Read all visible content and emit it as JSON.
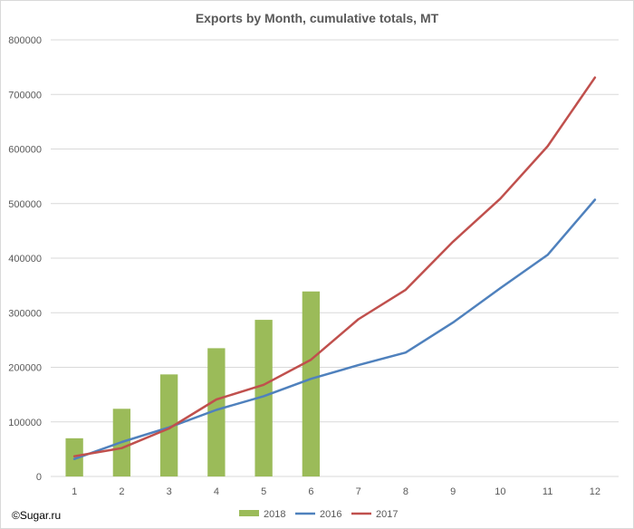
{
  "watermark": "©Sugar.ru",
  "chart_data": {
    "type": "bar+line",
    "title": "Exports by Month, cumulative totals, MT",
    "xlabel": "",
    "ylabel": "",
    "categories": [
      "1",
      "2",
      "3",
      "4",
      "5",
      "6",
      "7",
      "8",
      "9",
      "10",
      "11",
      "12"
    ],
    "ylim": [
      0,
      800000
    ],
    "yticks": [
      0,
      100000,
      200000,
      300000,
      400000,
      500000,
      600000,
      700000,
      800000
    ],
    "grid": true,
    "legend_position": "bottom",
    "series": [
      {
        "name": "2018",
        "type": "bar",
        "color": "#9bbb59",
        "values": [
          70000,
          124000,
          187000,
          235000,
          287000,
          339000,
          null,
          null,
          null,
          null,
          null,
          null
        ]
      },
      {
        "name": "2016",
        "type": "line",
        "color": "#4f81bd",
        "values": [
          32000,
          63000,
          90000,
          122000,
          147000,
          179000,
          204000,
          227000,
          282000,
          345000,
          406000,
          507000
        ]
      },
      {
        "name": "2017",
        "type": "line",
        "color": "#c0504d",
        "values": [
          37000,
          52000,
          88000,
          141000,
          168000,
          214000,
          288000,
          342000,
          430000,
          509000,
          605000,
          731000
        ]
      }
    ]
  }
}
